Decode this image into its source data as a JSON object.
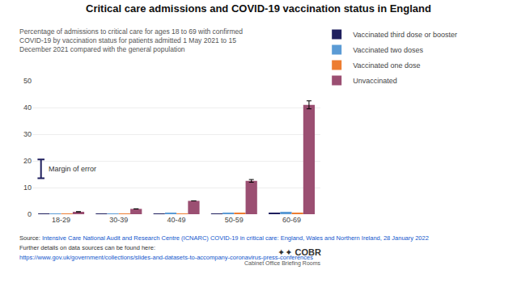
{
  "chart_data": {
    "type": "bar",
    "title": "Critical care admissions and COVID-19 vaccination status in England",
    "subtitle": "Percentage of admissions to critical care for ages 18 to 69 with confirmed\nCOVID-19 by vaccination status for patients admitted 1 May 2021 to 15\nDecember 2021 compared with the general population",
    "categories": [
      "18-29",
      "30-39",
      "40-49",
      "50-59",
      "60-69"
    ],
    "series": [
      {
        "name": "Vaccinated third dose or booster",
        "color": "#1f1f5e",
        "values": [
          0.05,
          0.05,
          0.1,
          0.3,
          0.5
        ],
        "errors": [
          0,
          0,
          0,
          0,
          0
        ]
      },
      {
        "name": "Vaccinated two doses",
        "color": "#5b9bd5",
        "values": [
          0.15,
          0.25,
          0.4,
          0.6,
          0.9
        ],
        "errors": [
          0,
          0,
          0,
          0,
          0
        ]
      },
      {
        "name": "Vaccinated one dose",
        "color": "#ed7d31",
        "values": [
          0.2,
          0.3,
          0.3,
          0.4,
          0.4
        ],
        "errors": [
          0,
          0,
          0,
          0,
          0
        ]
      },
      {
        "name": "Unvaccinated",
        "color": "#9b4f72",
        "values": [
          0.9,
          2.0,
          5.0,
          12.5,
          41.0
        ],
        "errors": [
          0,
          0,
          0,
          0.5,
          1.5
        ]
      }
    ],
    "ylim": [
      0,
      50
    ],
    "yticks": [
      0,
      10,
      20,
      30,
      40,
      50
    ],
    "grid": true,
    "legend": "top right",
    "annotation": {
      "text": "Margin of error",
      "y": 17,
      "error": 3.5,
      "color": "#1f1f5e"
    },
    "logo": "✦✦ COBR",
    "logo_caption": "Cabinet Office Briefing Rooms",
    "source_label": "Source: ",
    "source": "Intensive Care National Audit and Research Centre (ICNARC) COVID-19 in critical care: England, Wales and Northern Ireland, 28 January 2022",
    "source_note": "Further details on data sources can be found here:",
    "source_url": "https://www.gov.uk/government/collections/slides-and-datasets-to-accompany-coronavirus-press-conferences",
    "source_link_color": "#1155cc"
  }
}
